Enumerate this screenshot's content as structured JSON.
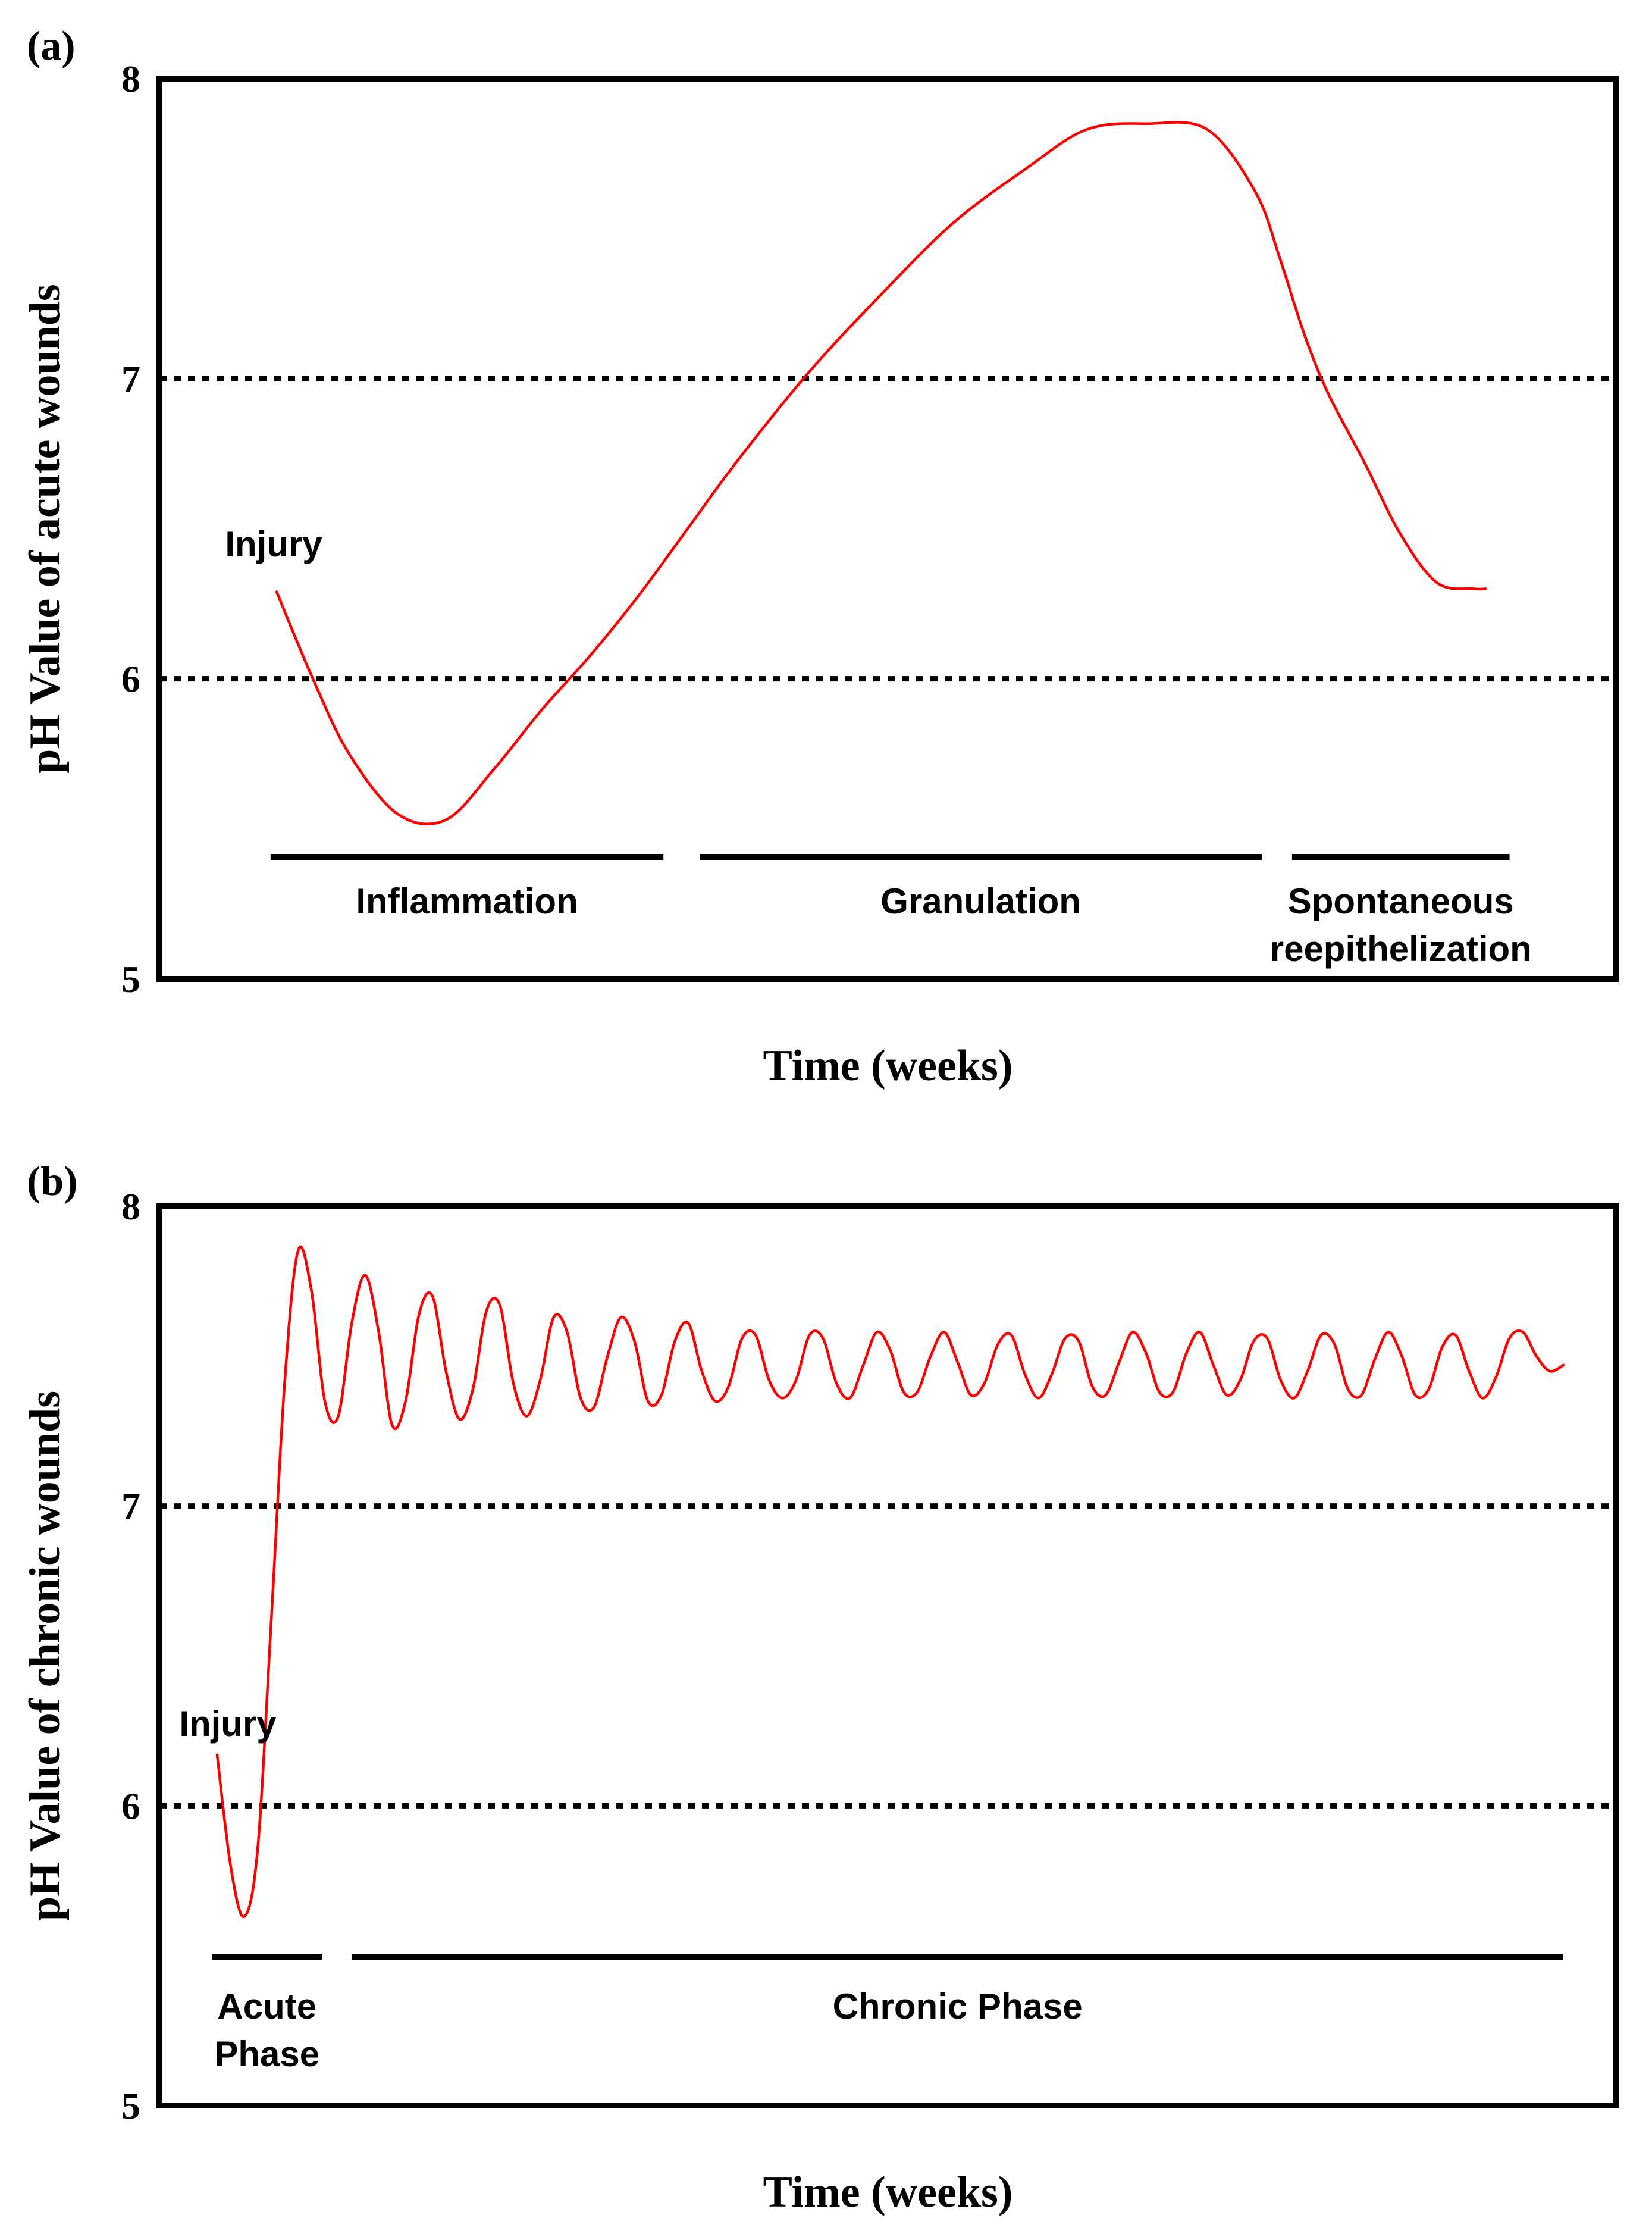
{
  "chart_data": [
    {
      "type": "line",
      "panel_label": "(a)",
      "xlabel": "Time (weeks)",
      "ylabel": "pH Value of acute wounds",
      "ylim": [
        5,
        8
      ],
      "xlim": [
        0,
        100
      ],
      "yticks": [
        "8",
        "7",
        "6",
        "5"
      ],
      "gridlines": [
        7,
        6
      ],
      "series": [
        {
          "name": "acute wound pH",
          "color": "#ff0000",
          "x": [
            0,
            3,
            6,
            10,
            14,
            18,
            22,
            26,
            30,
            34,
            38,
            44,
            50,
            56,
            62,
            67,
            72,
            77,
            81,
            83,
            85,
            87,
            90,
            93,
            96,
            99,
            100
          ],
          "y": [
            6.29,
            6.0,
            5.75,
            5.55,
            5.53,
            5.7,
            5.9,
            6.08,
            6.28,
            6.5,
            6.72,
            7.02,
            7.28,
            7.52,
            7.7,
            7.83,
            7.85,
            7.83,
            7.62,
            7.4,
            7.15,
            6.95,
            6.72,
            6.48,
            6.32,
            6.3,
            6.3
          ]
        }
      ],
      "annotations": [
        {
          "text": "Injury"
        }
      ],
      "phases": [
        {
          "lines": [
            "Inflammation"
          ],
          "x_start": -0.5,
          "x_end": 32
        },
        {
          "lines": [
            "Granulation"
          ],
          "x_start": 35,
          "x_end": 81.5
        },
        {
          "lines": [
            "Spontaneous",
            "reepithelization"
          ],
          "x_start": 84,
          "x_end": 102
        }
      ]
    },
    {
      "type": "line",
      "panel_label": "(b)",
      "xlabel": "Time (weeks)",
      "ylabel": "pH Value of chronic wounds",
      "ylim": [
        5,
        8
      ],
      "xlim": [
        0,
        100
      ],
      "yticks": [
        "8",
        "7",
        "6",
        "5"
      ],
      "gridlines": [
        7,
        6
      ],
      "series": [
        {
          "name": "chronic wound pH",
          "color": "#ff0000",
          "x": [
            0,
            1,
            2,
            3,
            4,
            5,
            6,
            7,
            8,
            9,
            10,
            11,
            12,
            13,
            14,
            15,
            16,
            17,
            18,
            19,
            20,
            21,
            22,
            23,
            24,
            25,
            26,
            27,
            28,
            29,
            30,
            31,
            32,
            33,
            34,
            35,
            36,
            37,
            38,
            39,
            40,
            41,
            42,
            43,
            44,
            45,
            46,
            47,
            48,
            49,
            50,
            51,
            52,
            53,
            54,
            55,
            56,
            57,
            58,
            59,
            60,
            61,
            62,
            63,
            64,
            65,
            66,
            67,
            68,
            69,
            70,
            71,
            72,
            73,
            74,
            75,
            76,
            77,
            78,
            79,
            80,
            81,
            82,
            83,
            84,
            85,
            86,
            87,
            88,
            89,
            90,
            91,
            92,
            93,
            94,
            95,
            96,
            97,
            98,
            99,
            100
          ],
          "y": [
            6.17,
            5.8,
            5.63,
            5.85,
            6.6,
            7.4,
            7.85,
            7.72,
            7.35,
            7.3,
            7.61,
            7.77,
            7.58,
            7.27,
            7.35,
            7.64,
            7.7,
            7.45,
            7.29,
            7.39,
            7.65,
            7.67,
            7.41,
            7.3,
            7.42,
            7.63,
            7.58,
            7.36,
            7.33,
            7.5,
            7.63,
            7.55,
            7.35,
            7.37,
            7.55,
            7.61,
            7.45,
            7.35,
            7.4,
            7.56,
            7.57,
            7.42,
            7.36,
            7.42,
            7.57,
            7.56,
            7.41,
            7.36,
            7.47,
            7.58,
            7.52,
            7.38,
            7.38,
            7.5,
            7.58,
            7.48,
            7.37,
            7.41,
            7.54,
            7.57,
            7.44,
            7.36,
            7.44,
            7.56,
            7.55,
            7.4,
            7.37,
            7.48,
            7.58,
            7.51,
            7.38,
            7.38,
            7.51,
            7.58,
            7.47,
            7.37,
            7.42,
            7.55,
            7.56,
            7.42,
            7.36,
            7.45,
            7.57,
            7.54,
            7.39,
            7.37,
            7.49,
            7.58,
            7.5,
            7.37,
            7.39,
            7.53,
            7.57,
            7.45,
            7.36,
            7.43,
            7.56,
            7.58,
            7.5,
            7.45,
            7.47
          ]
        }
      ],
      "annotations": [
        {
          "text": "Injury"
        }
      ],
      "phases": [
        {
          "lines": [
            "Acute",
            "Phase"
          ],
          "x_start": -0.4,
          "x_end": 7.8
        },
        {
          "lines": [
            "Chronic Phase"
          ],
          "x_start": 10,
          "x_end": 100
        }
      ]
    }
  ]
}
